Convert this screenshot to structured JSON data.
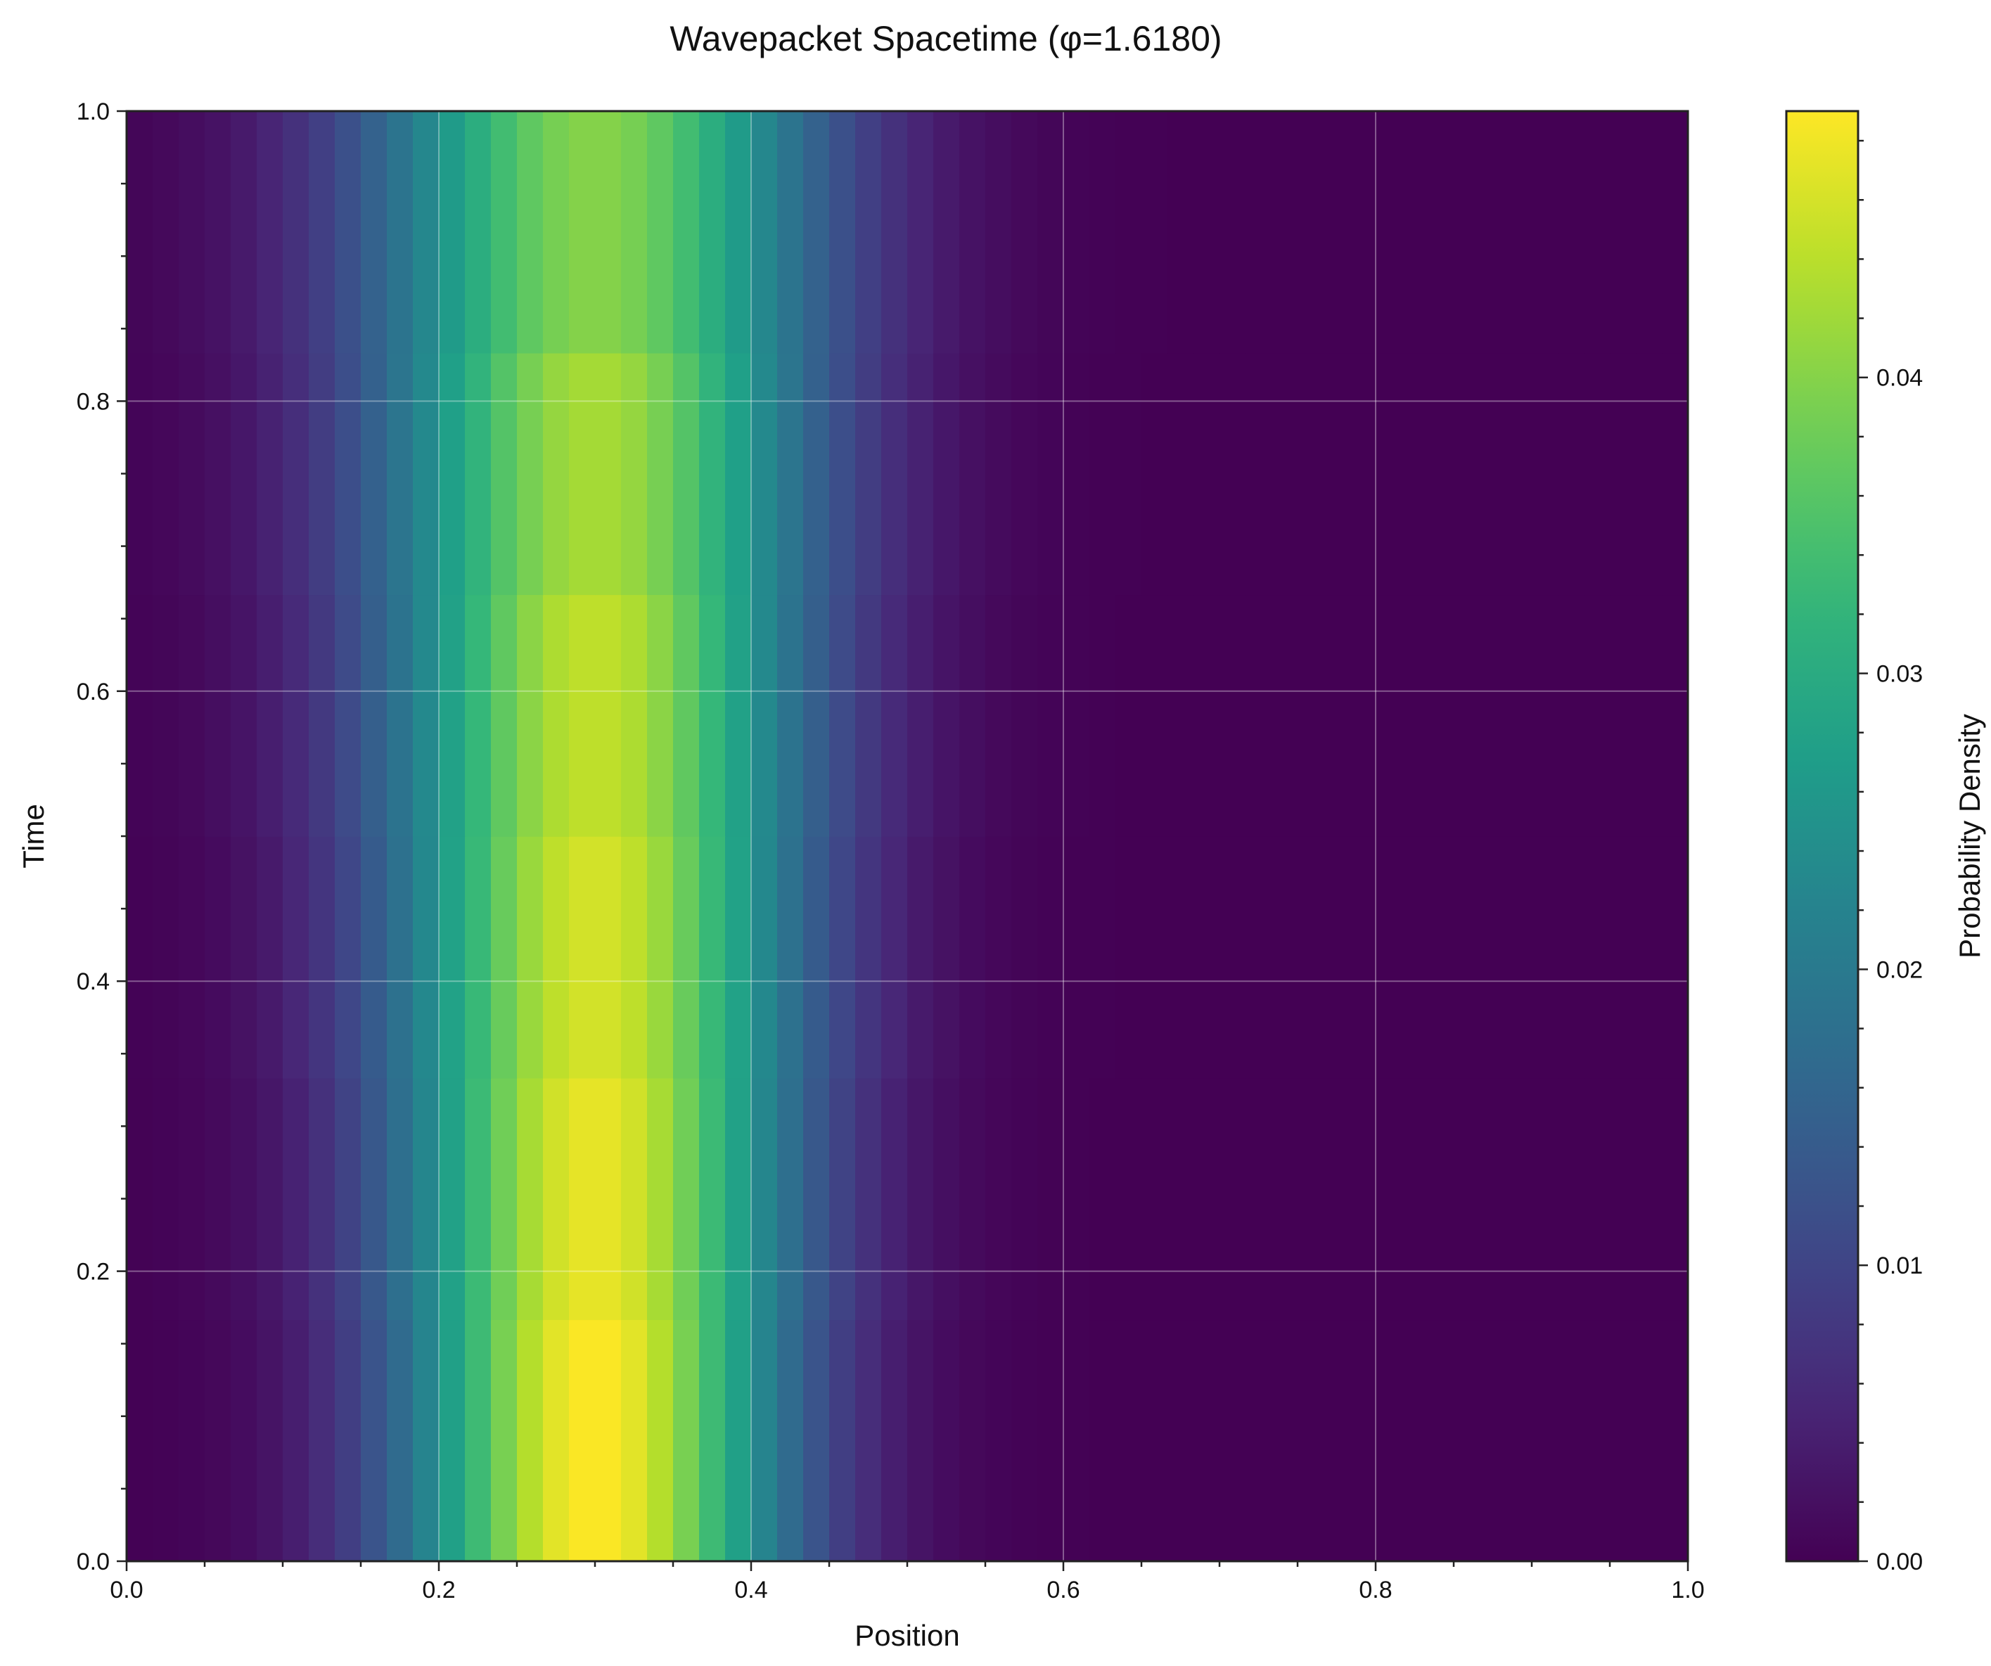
{
  "chart_data": {
    "type": "heatmap",
    "title": "Wavepacket Spacetime (φ=1.6180)",
    "xlabel": "Position",
    "ylabel": "Time",
    "xlim": [
      0.0,
      1.0
    ],
    "ylim": [
      0.0,
      1.0
    ],
    "xticks": [
      "0.0",
      "0.2",
      "0.4",
      "0.6",
      "0.8",
      "1.0"
    ],
    "yticks": [
      "0.0",
      "0.2",
      "0.4",
      "0.6",
      "0.8",
      "1.0"
    ],
    "grid": true,
    "colormap": "viridis",
    "colorbar": {
      "label": "Probability Density",
      "range": [
        0.0,
        0.049
      ],
      "ticks": [
        "0.00",
        "0.01",
        "0.02",
        "0.03",
        "0.04"
      ]
    },
    "x_bins": 60,
    "time_rows": [
      {
        "t_range": [
          0.0,
          0.1667
        ],
        "center": 0.3,
        "peak": 0.049,
        "width": 0.086
      },
      {
        "t_range": [
          0.1667,
          0.3333
        ],
        "center": 0.3,
        "peak": 0.0475,
        "width": 0.089
      },
      {
        "t_range": [
          0.3333,
          0.5
        ],
        "center": 0.3,
        "peak": 0.046,
        "width": 0.092
      },
      {
        "t_range": [
          0.5,
          0.6667
        ],
        "center": 0.3,
        "peak": 0.0445,
        "width": 0.095
      },
      {
        "t_range": [
          0.6667,
          0.8333
        ],
        "center": 0.3,
        "peak": 0.0425,
        "width": 0.0985
      },
      {
        "t_range": [
          0.8333,
          1.0
        ],
        "center": 0.3,
        "peak": 0.04,
        "width": 0.102
      }
    ]
  }
}
